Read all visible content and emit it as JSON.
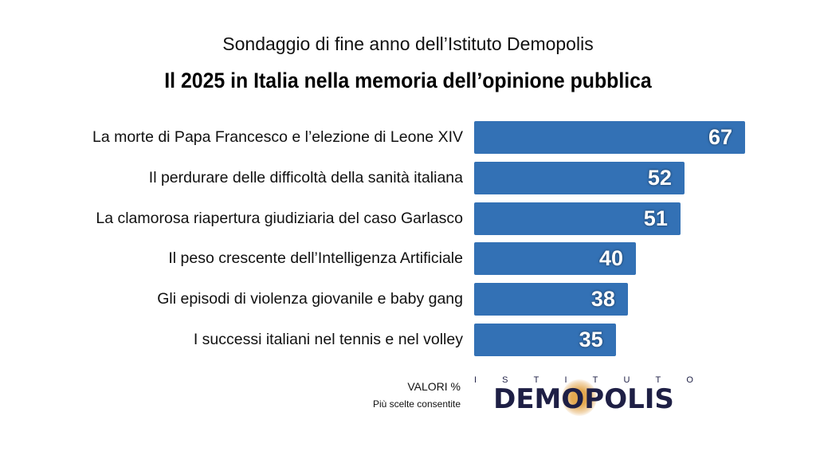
{
  "chart_data": {
    "type": "bar",
    "orientation": "horizontal",
    "subtitle": "Sondaggio di fine anno dell’Istituto Demopolis",
    "title": "Il 2025 in Italia nella memoria dell’opinione pubblica",
    "categories": [
      "La morte di Papa Francesco e l’elezione di Leone XIV",
      "Il perdurare delle difficoltà della sanità italiana",
      "La clamorosa riapertura giudiziaria del caso Garlasco",
      "Il peso crescente dell’Intelligenza Artificiale",
      "Gli episodi di violenza giovanile e baby gang",
      "I successi italiani nel tennis e nel volley"
    ],
    "values": [
      67,
      52,
      51,
      40,
      38,
      35
    ],
    "xlabel": "",
    "ylabel": "",
    "xlim": [
      0,
      67
    ],
    "grid": false,
    "bar_color": "#3371b5"
  },
  "notes": {
    "unit": "VALORI %",
    "multi": "Più scelte consentite"
  },
  "logo": {
    "top": "ISTITUTO",
    "main": "DEMOPOLIS"
  }
}
